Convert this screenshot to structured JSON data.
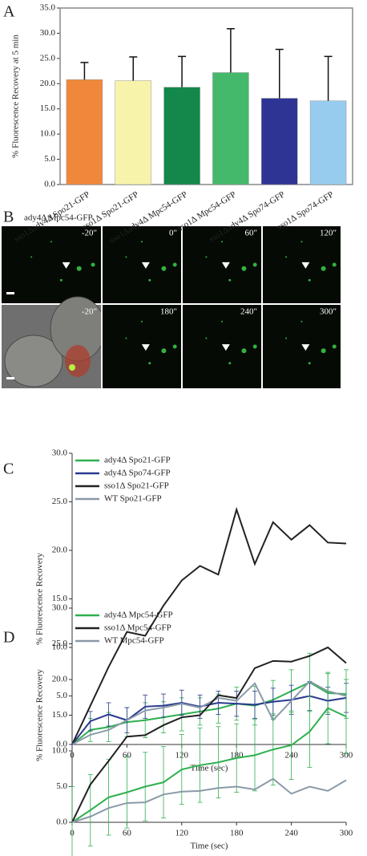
{
  "chart_data": [
    {
      "type": "bar",
      "panel_label": "A",
      "y_label": "% Fluorescence Recovery at 5 min",
      "categories": [
        "sso1Δady4Δ Spo21-GFP",
        "sso1Δ Spo21-GFP",
        "sso1Δady4Δ Mpc54-GFP",
        "sso1Δ Mpc54-GFP",
        "sso1Δady4Δ Spo74-GFP",
        "sso1Δ Spo74-GFP"
      ],
      "values": [
        20.8,
        20.6,
        19.3,
        22.2,
        17.1,
        16.6
      ],
      "errors": [
        3.4,
        4.7,
        6.1,
        8.7,
        9.7,
        8.8
      ],
      "colors": [
        "#f0873a",
        "#f8f3ab",
        "#14884a",
        "#45b96b",
        "#2e3494",
        "#98ccee"
      ],
      "ylim": [
        0,
        35
      ],
      "yticks": [
        {
          "value": 0,
          "label": "0.0"
        },
        {
          "value": 5,
          "label": "5.0"
        },
        {
          "value": 10,
          "label": "10.0"
        },
        {
          "value": 15,
          "label": "15.0"
        },
        {
          "value": 20,
          "label": "20.0"
        },
        {
          "value": 25,
          "label": "25.0"
        },
        {
          "value": 30,
          "label": "30.0"
        },
        {
          "value": 35,
          "label": "35.0"
        }
      ]
    },
    {
      "type": "line",
      "panel_label": "C",
      "y_label": "% Fluorescence Recovery",
      "x_label": "Time (sec)",
      "x": [
        0,
        20,
        40,
        60,
        80,
        100,
        120,
        140,
        160,
        180,
        200,
        220,
        240,
        260,
        280,
        300
      ],
      "series": [
        {
          "name": "ady4Δ Spo21-GFP",
          "color": "#2fb04f",
          "values": [
            0,
            1.5,
            1.8,
            2.3,
            2.5,
            2.8,
            3.1,
            3.4,
            3.7,
            4.2,
            4.0,
            4.6,
            5.5,
            6.4,
            5.3,
            5.2
          ],
          "errors": [
            0,
            1.2,
            1.5,
            1.5,
            1.8,
            1.6,
            1.7,
            1.4,
            1.5,
            1.7,
            2.0,
            2.0,
            2.2,
            3.0,
            2.0,
            2.5
          ]
        },
        {
          "name": "ady4Δ Spo74-GFP",
          "color": "#2a3a8f",
          "values": [
            0,
            2.4,
            3.1,
            2.5,
            3.9,
            4.0,
            4.3,
            3.9,
            4.3,
            4.2,
            4.1,
            4.4,
            4.6,
            5.0,
            4.5,
            4.8
          ],
          "errors": [
            0,
            1.0,
            1.2,
            1.3,
            1.2,
            1.2,
            1.3,
            1.2,
            1.2,
            1.3,
            1.4,
            1.4,
            1.5,
            1.5,
            1.4,
            1.5
          ]
        },
        {
          "name": "sso1Δ Spo21-GFP",
          "color": "#222222",
          "values": [
            0,
            4,
            8,
            11.6,
            11.2,
            14.3,
            16.9,
            18.4,
            17.5,
            24.2,
            18.6,
            22.9,
            21.1,
            22.6,
            20.8,
            20.7
          ]
        },
        {
          "name": "WT Spo21-GFP",
          "color": "#8a9aa8",
          "values": [
            0,
            1.0,
            1.5,
            2.5,
            3.5,
            3.8,
            4.2,
            3.8,
            4.8,
            4.5,
            6.3,
            2.5,
            4.5,
            6.5,
            5.5,
            5.0
          ]
        }
      ],
      "xlim": [
        0,
        300
      ],
      "xticks": [
        0,
        60,
        120,
        180,
        240,
        300
      ],
      "ylim": [
        0,
        30
      ],
      "yticks": [
        {
          "value": 0,
          "label": "0.0"
        },
        {
          "value": 5,
          "label": "5.0"
        },
        {
          "value": 10,
          "label": "10.0"
        },
        {
          "value": 15,
          "label": "15.0"
        },
        {
          "value": 20,
          "label": "20.0"
        },
        {
          "value": 25,
          "label": "25.0"
        },
        {
          "value": 30,
          "label": "30.0"
        }
      ]
    },
    {
      "type": "line",
      "panel_label": "D",
      "y_label": "% Fluorescence Recovery",
      "x_label": "Time (sec)",
      "x": [
        0,
        20,
        40,
        60,
        80,
        100,
        120,
        140,
        160,
        180,
        200,
        220,
        240,
        260,
        280,
        300
      ],
      "series": [
        {
          "name": "ady4Δ Mpc54-GFP",
          "color": "#2fb04f",
          "values": [
            0,
            1.7,
            3.5,
            4.2,
            5.0,
            5.6,
            7.4,
            8.0,
            8.4,
            9.0,
            9.4,
            10.2,
            10.8,
            12.7,
            16.0,
            14.8
          ],
          "errors": [
            5,
            5,
            5.3,
            5,
            4.8,
            5,
            4.9,
            5.2,
            5,
            4.8,
            5,
            5,
            4.8,
            5,
            5,
            5.2
          ]
        },
        {
          "name": "sso1Δ Mpc54-GFP",
          "color": "#222222",
          "values": [
            0,
            5.3,
            8.6,
            12.0,
            12.2,
            13.6,
            14.7,
            15.0,
            17.8,
            17.4,
            21.6,
            22.6,
            22.5,
            23.3,
            24.5,
            22.3
          ]
        },
        {
          "name": "WT Mpc54-GFP",
          "color": "#8a9aa8",
          "values": [
            0,
            0.8,
            2.0,
            2.7,
            2.8,
            3.9,
            4.3,
            4.4,
            4.8,
            5.0,
            4.6,
            6.1,
            4.0,
            5.0,
            4.4,
            5.9
          ]
        }
      ],
      "xlim": [
        0,
        300
      ],
      "xticks": [
        0,
        60,
        120,
        180,
        240,
        300
      ],
      "ylim": [
        0,
        30
      ],
      "yticks": [
        {
          "value": 0,
          "label": "0.0"
        },
        {
          "value": 5,
          "label": "5.0"
        },
        {
          "value": 10,
          "label": "10.0"
        },
        {
          "value": 15,
          "label": "15.0"
        },
        {
          "value": 20,
          "label": "20.0"
        },
        {
          "value": 25,
          "label": "25.0"
        },
        {
          "value": 30,
          "label": "30.0"
        }
      ]
    }
  ],
  "figure_b": {
    "panel_label": "B",
    "title": "ady4Δ Mpc54-GFP",
    "frames": [
      "-20\"",
      "0\"",
      "60\"",
      "120\"",
      "-20\"",
      "180\"",
      "240\"",
      "300\""
    ]
  }
}
